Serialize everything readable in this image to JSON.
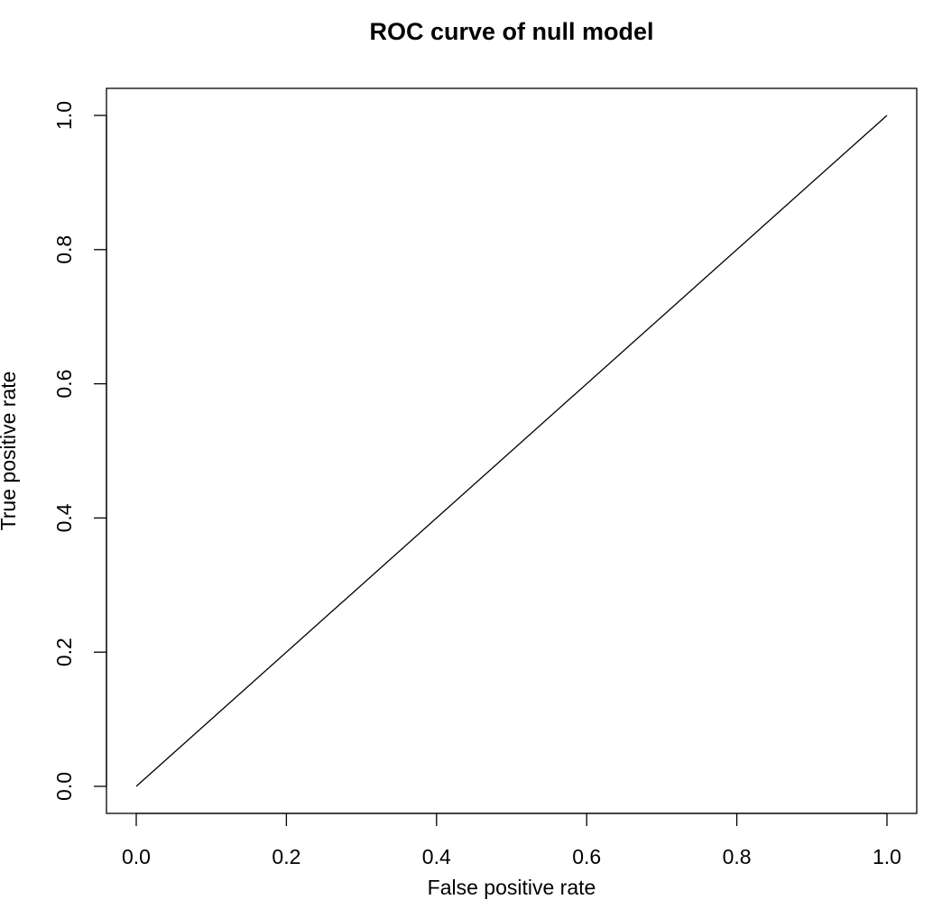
{
  "chart_data": {
    "type": "line",
    "title": "ROC curve of null model",
    "xlabel": "False positive rate",
    "ylabel": "True positive rate",
    "xlim": [
      0,
      1
    ],
    "ylim": [
      0,
      1
    ],
    "xticks": [
      "0.0",
      "0.2",
      "0.4",
      "0.6",
      "0.8",
      "1.0"
    ],
    "yticks": [
      "0.0",
      "0.2",
      "0.4",
      "0.6",
      "0.8",
      "1.0"
    ],
    "grid": false,
    "series": [
      {
        "x": [
          0.0,
          1.0
        ],
        "y": [
          0.0,
          1.0
        ],
        "color": "#000000"
      }
    ]
  }
}
